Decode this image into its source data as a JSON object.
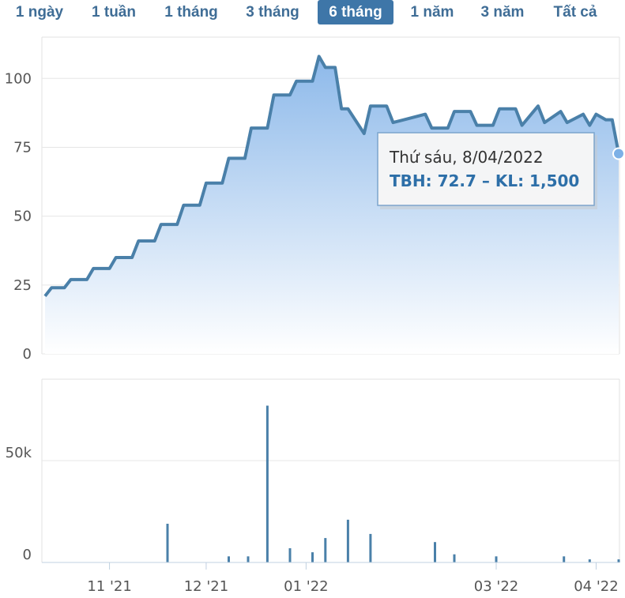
{
  "range_tabs": [
    {
      "label": "1 ngày",
      "active": false
    },
    {
      "label": "1 tuần",
      "active": false
    },
    {
      "label": "1 tháng",
      "active": false
    },
    {
      "label": "3 tháng",
      "active": false
    },
    {
      "label": "6 tháng",
      "active": true
    },
    {
      "label": "1 năm",
      "active": false
    },
    {
      "label": "3 năm",
      "active": false
    },
    {
      "label": "Tất cả",
      "active": false
    }
  ],
  "tooltip": {
    "date": "Thứ sáu, 8/04/2022",
    "values": "TBH: 72.7 – KL: 1,500"
  },
  "colors": {
    "line": "#4a80a9",
    "area_top": "#8db9ea",
    "area_bottom": "#ffffff",
    "volume": "#4a80a9",
    "accent": "#3e76a8"
  },
  "chart_data": [
    {
      "type": "area",
      "series_code": "TBH",
      "ylim": [
        0,
        115
      ],
      "yticks": [
        "0",
        "25",
        "50",
        "75",
        "100"
      ],
      "x": [
        "2021-10-12",
        "2021-10-14",
        "2021-10-18",
        "2021-10-20",
        "2021-10-25",
        "2021-10-27",
        "2021-11-01",
        "2021-11-03",
        "2021-11-08",
        "2021-11-10",
        "2021-11-15",
        "2021-11-17",
        "2021-11-22",
        "2021-11-24",
        "2021-11-29",
        "2021-12-01",
        "2021-12-06",
        "2021-12-08",
        "2021-12-13",
        "2021-12-15",
        "2021-12-20",
        "2021-12-22",
        "2021-12-27",
        "2021-12-29",
        "2022-01-03",
        "2022-01-05",
        "2022-01-07",
        "2022-01-10",
        "2022-01-12",
        "2022-01-14",
        "2022-01-19",
        "2022-01-21",
        "2022-01-26",
        "2022-01-28",
        "2022-02-07",
        "2022-02-09",
        "2022-02-14",
        "2022-02-16",
        "2022-02-21",
        "2022-02-23",
        "2022-02-28",
        "2022-03-02",
        "2022-03-07",
        "2022-03-09",
        "2022-03-14",
        "2022-03-16",
        "2022-03-21",
        "2022-03-23",
        "2022-03-28",
        "2022-03-30",
        "2022-04-01",
        "2022-04-04",
        "2022-04-06",
        "2022-04-08"
      ],
      "values": [
        21,
        24,
        24,
        27,
        27,
        31,
        31,
        35,
        35,
        41,
        41,
        47,
        47,
        54,
        54,
        62,
        62,
        71,
        71,
        82,
        82,
        94,
        94,
        99,
        99,
        108,
        104,
        104,
        89,
        89,
        80,
        90,
        90,
        84,
        87,
        82,
        82,
        88,
        88,
        83,
        83,
        89,
        89,
        83,
        90,
        84,
        88,
        84,
        87,
        83,
        87,
        85,
        85,
        72.7
      ]
    },
    {
      "type": "bar",
      "series_code": "KL",
      "ylim": [
        0,
        90000
      ],
      "yticks": [
        "0",
        "50k"
      ],
      "xticks": [
        "11 '21",
        "12 '21",
        "01 '22",
        "03 '22",
        "04 '22"
      ],
      "x": [
        "2021-11-19",
        "2021-12-08",
        "2021-12-14",
        "2021-12-20",
        "2021-12-27",
        "2022-01-03",
        "2022-01-07",
        "2022-01-14",
        "2022-01-21",
        "2022-02-10",
        "2022-02-16",
        "2022-03-01",
        "2022-03-22",
        "2022-03-30",
        "2022-04-08"
      ],
      "values": [
        19000,
        3000,
        3000,
        77000,
        7000,
        5000,
        12000,
        21000,
        14000,
        10000,
        4000,
        3000,
        3000,
        1500,
        1500
      ]
    }
  ]
}
